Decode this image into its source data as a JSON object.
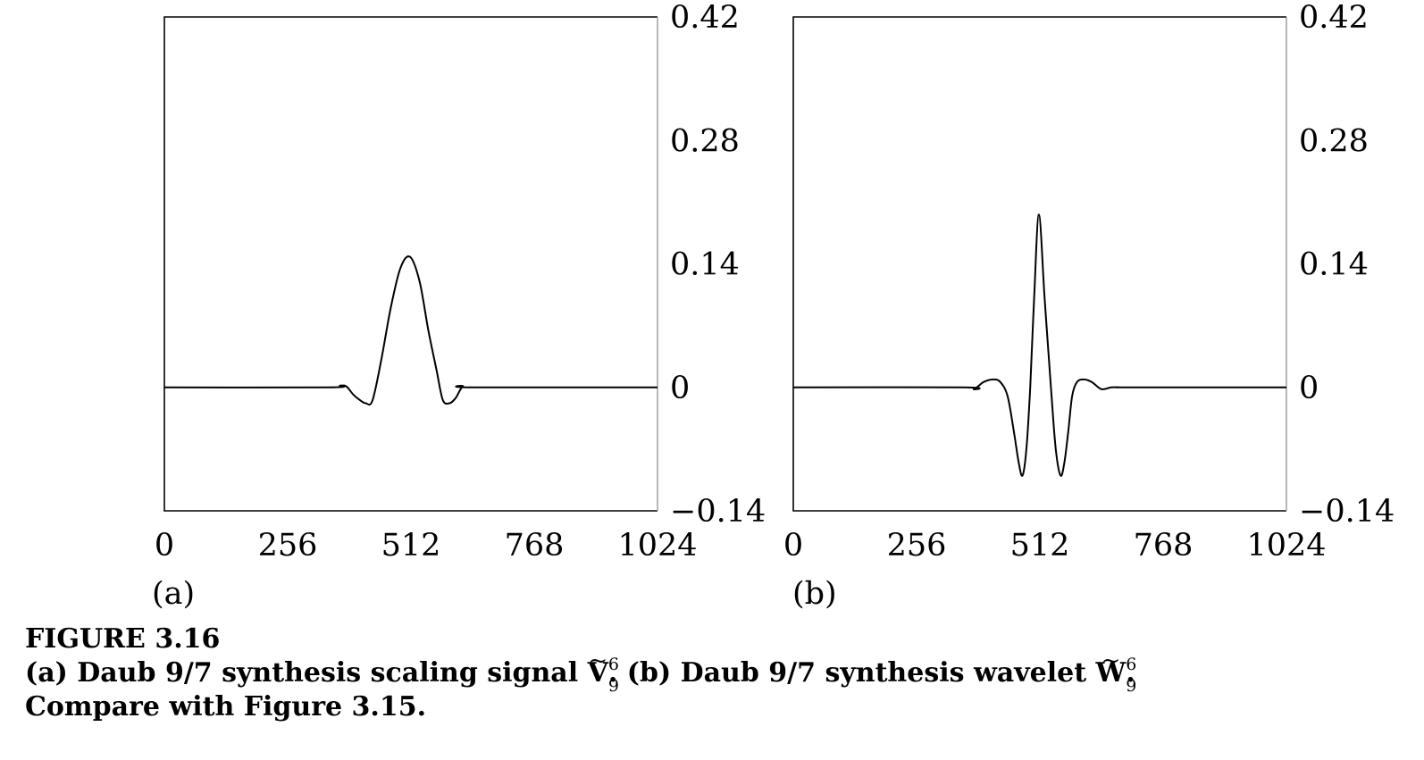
{
  "chart_data": [
    {
      "type": "line",
      "panel_label": "(a)",
      "xlim": [
        0,
        1024
      ],
      "ylim": [
        -0.14,
        0.42
      ],
      "x_ticks": [
        0,
        256,
        512,
        768,
        1024
      ],
      "x_tick_labels": [
        "0",
        "256",
        "512",
        "768",
        "1024"
      ],
      "y_ticks": [
        0.42,
        0.28,
        0.14,
        0,
        -0.14
      ],
      "y_tick_labels": [
        "0.42",
        "0.28",
        "0.14",
        "0",
        "−0.14"
      ],
      "y_axis_side": "right",
      "grid": false,
      "series": [
        {
          "x": [
            0,
            340,
            365,
            378,
            392,
            405,
            418,
            432,
            450,
            470,
            490,
            510,
            530,
            548,
            565,
            578,
            592,
            605,
            620,
            640,
            1024
          ],
          "y": [
            0,
            0,
            0.002,
            0.001,
            -0.008,
            -0.014,
            -0.018,
            -0.015,
            0.03,
            0.09,
            0.135,
            0.148,
            0.12,
            0.065,
            0.02,
            -0.014,
            -0.018,
            -0.012,
            0.001,
            0.0,
            0
          ]
        }
      ]
    },
    {
      "type": "line",
      "panel_label": "(b)",
      "xlim": [
        0,
        1024
      ],
      "ylim": [
        -0.14,
        0.42
      ],
      "x_ticks": [
        0,
        256,
        512,
        768,
        1024
      ],
      "x_tick_labels": [
        "0",
        "256",
        "512",
        "768",
        "1024"
      ],
      "y_ticks": [
        0.42,
        0.28,
        0.14,
        0,
        -0.14
      ],
      "y_tick_labels": [
        "0.42",
        "0.28",
        "0.14",
        "0",
        "−0.14"
      ],
      "y_axis_side": "right",
      "grid": false,
      "series": [
        {
          "x": [
            0,
            355,
            375,
            395,
            415,
            430,
            445,
            458,
            468,
            476,
            484,
            492,
            500,
            510,
            522,
            535,
            545,
            555,
            563,
            571,
            579,
            589,
            604,
            620,
            640,
            660,
            680,
            700,
            1024
          ],
          "y": [
            0,
            0,
            -0.002,
            0.006,
            0.009,
            0.006,
            -0.01,
            -0.05,
            -0.085,
            -0.1,
            -0.07,
            0.0,
            0.1,
            0.196,
            0.1,
            0.0,
            -0.07,
            -0.1,
            -0.085,
            -0.05,
            -0.01,
            0.006,
            0.009,
            0.006,
            -0.002,
            0.0,
            0,
            0,
            0
          ]
        }
      ]
    }
  ],
  "caption": {
    "figure_label": "FIGURE 3.16",
    "part_a": "(a) Daub 9/7 synthesis scaling signal",
    "sym_a_base": "V",
    "sym_a_tilde": "~",
    "sym_a_sup": "6",
    "sym_a_sub": "9",
    "part_a_end": ".",
    "part_b": "(b) Daub 9/7 synthesis wavelet",
    "sym_b_base": "W",
    "sym_b_tilde": "~",
    "sym_b_sup": "6",
    "sym_b_sub": "9",
    "part_b_end": ".",
    "line3": "Compare with Figure 3.15."
  }
}
